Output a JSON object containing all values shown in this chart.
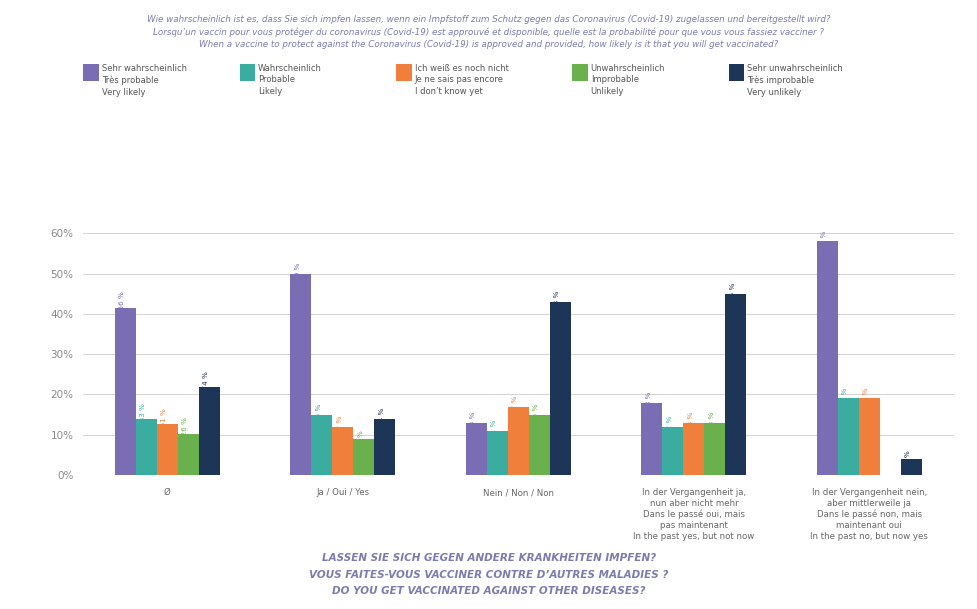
{
  "title_line1": "Wie wahrscheinlich ist es, dass Sie sich impfen lassen, wenn ein Impfstoff zum Schutz gegen das Coronavirus (Covid-19) zugelassen und bereitgestellt wird?",
  "title_line2": "Lorsqu’un vaccin pour vous protéger du coronavirus (Covid-19) est approuvé et disponible, quelle est la probabilité pour que vous vous fassiez vacciner ?",
  "title_line3": "When a vaccine to protect against the Coronavirus (Covid-19) is approved and provided, how likely is it that you will get vaccinated?",
  "footer_line1": "LASSEN SIE SICH GEGEN ANDERE KRANKHEITEN IMPFEN?",
  "footer_line2": "VOUS FAITES-VOUS VACCINER CONTRE D’AUTRES MALADIES ?",
  "footer_line3": "DO YOU GET VACCINATED AGAINST OTHER DISEASES?",
  "legend": [
    {
      "label": "Sehr wahrscheinlich\nTrès probable\nVery likely",
      "color": "#7b6db3"
    },
    {
      "label": "Wahrscheinlich\nProbable\nLikely",
      "color": "#3aada0"
    },
    {
      "label": "Ich weiß es noch nicht\nJe ne sais pas encore\nI don’t know yet",
      "color": "#f07f3c"
    },
    {
      "label": "Unwahrscheinlich\nImprobable\nUnlikely",
      "color": "#6ab04c"
    },
    {
      "label": "Sehr unwahrscheinlich\nTrès improbable\nVery unlikely",
      "color": "#1d3557"
    }
  ],
  "categories": [
    "Ø",
    "Ja / Oui / Yes",
    "Nein / Non / Non",
    "In der Vergangenheit ja,\nnun aber nicht mehr\nDans le passé oui, mais\npas maintenant\nIn the past yes, but not now",
    "In der Vergangenheit nein,\naber mittlerweile ja\nDans le passé non, mais\nmaintenant oui\nIn the past no, but now yes"
  ],
  "series": [
    {
      "name": "Sehr wahrscheinlich",
      "color": "#7b6db3",
      "values": [
        41.56,
        50.0,
        13.0,
        18.0,
        58.0
      ],
      "labels": [
        "41,56 %",
        "50 %",
        "13 %",
        "18 %",
        "58 %"
      ]
    },
    {
      "name": "Wahrscheinlich",
      "color": "#3aada0",
      "values": [
        13.83,
        15.0,
        11.0,
        12.0,
        19.0
      ],
      "labels": [
        "13,83 %",
        "15 %",
        "11 %",
        "12 %",
        "19 %"
      ]
    },
    {
      "name": "Ich weiß es noch nicht",
      "color": "#f07f3c",
      "values": [
        12.61,
        12.0,
        17.0,
        13.0,
        19.0
      ],
      "labels": [
        "12,61 %",
        "12 %",
        "17 %",
        "13 %",
        "19 %"
      ]
    },
    {
      "name": "Unwahrscheinlich",
      "color": "#6ab04c",
      "values": [
        10.26,
        9.0,
        15.0,
        13.0,
        0.0
      ],
      "labels": [
        "10,26 %",
        "9 %",
        "15 %",
        "13 %",
        "0 %"
      ]
    },
    {
      "name": "Sehr unwahrscheinlich",
      "color": "#1d3557",
      "values": [
        21.74,
        14.0,
        43.0,
        45.0,
        4.0
      ],
      "labels": [
        "21,74 %",
        "14 %",
        "43 %",
        "45 %",
        "4 %"
      ]
    }
  ],
  "ylim": [
    0,
    65
  ],
  "yticks": [
    0,
    10,
    20,
    30,
    40,
    50,
    60
  ],
  "yticklabels": [
    "0%",
    "10%",
    "20%",
    "30%",
    "40%",
    "50%",
    "60%"
  ],
  "bg_color": "#ffffff",
  "plot_bg_color": "#ffffff",
  "title_color": "#7b7bb0",
  "footer_color": "#7b7bb0",
  "label_fontsize": 5.5,
  "axis_fontsize": 7.5
}
